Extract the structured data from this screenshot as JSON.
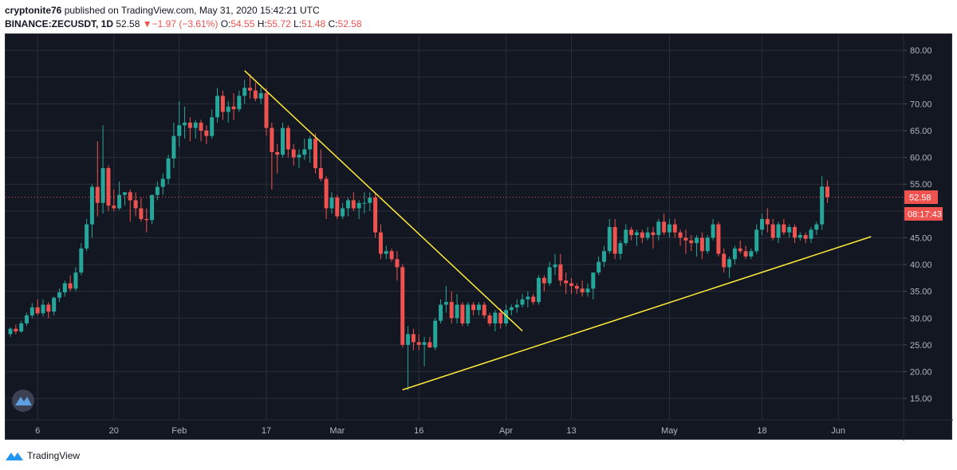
{
  "header": {
    "author": "cryptonite76",
    "published_text": "published on TradingView.com, May 31, 2020 15:42:21 UTC",
    "symbol": "BINANCE:ZECUSDT, 1D",
    "last": "52.58",
    "change_arrow": "▼",
    "change": "−1.97 (−3.61%)",
    "o_label": "O:",
    "o_value": "54.55",
    "h_label": "H:",
    "h_value": "55.72",
    "l_label": "L:",
    "l_value": "51.48",
    "c_label": "C:",
    "c_value": "52.58"
  },
  "price_axis": {
    "ticks": [
      "80.00",
      "75.00",
      "70.00",
      "65.00",
      "60.00",
      "55.00",
      "50.00",
      "45.00",
      "40.00",
      "35.00",
      "30.00",
      "25.00",
      "20.00",
      "15.00"
    ],
    "last_price_label": "52.58",
    "countdown_label": "08:17:43"
  },
  "time_axis": {
    "ticks": [
      {
        "label": "6",
        "index": 5
      },
      {
        "label": "20",
        "index": 19
      },
      {
        "label": "Feb",
        "index": 31
      },
      {
        "label": "17",
        "index": 47
      },
      {
        "label": "Mar",
        "index": 60
      },
      {
        "label": "16",
        "index": 75
      },
      {
        "label": "Apr",
        "index": 91
      },
      {
        "label": "13",
        "index": 103
      },
      {
        "label": "May",
        "index": 121
      },
      {
        "label": "18",
        "index": 138
      },
      {
        "label": "Jun",
        "index": 152
      }
    ]
  },
  "footer": {
    "brand": "TradingView"
  },
  "colors": {
    "up": "#26a69a",
    "down": "#ef5350",
    "background": "#131722",
    "grid": "#2a2e39",
    "axis_text": "#b2b5be",
    "trendline": "#ffeb3b"
  },
  "chart_data": {
    "type": "candlestick",
    "title": "BINANCE:ZECUSDT, 1D",
    "ylim": [
      11,
      83
    ],
    "grid": true,
    "series": [
      {
        "ohlc": [
          [
            27.0,
            28.3,
            26.5,
            28.0
          ],
          [
            28.0,
            28.8,
            27.0,
            27.5
          ],
          [
            27.5,
            29.5,
            27.2,
            29.0
          ],
          [
            29.0,
            31.0,
            28.5,
            30.5
          ],
          [
            30.5,
            32.8,
            30.0,
            32.0
          ],
          [
            32.0,
            33.5,
            30.5,
            30.9
          ],
          [
            30.9,
            33.5,
            30.3,
            32.5
          ],
          [
            32.5,
            33.0,
            30.0,
            31.2
          ],
          [
            31.2,
            34.0,
            30.5,
            33.8
          ],
          [
            33.8,
            35.5,
            33.0,
            34.8
          ],
          [
            34.8,
            37.0,
            34.0,
            36.5
          ],
          [
            36.5,
            38.0,
            35.0,
            35.5
          ],
          [
            35.5,
            39.5,
            35.0,
            38.5
          ],
          [
            38.5,
            44.0,
            38.0,
            43.0
          ],
          [
            43.0,
            48.5,
            42.5,
            47.5
          ],
          [
            47.5,
            55.0,
            45.0,
            54.5
          ],
          [
            54.5,
            63.0,
            49.0,
            51.5
          ],
          [
            51.5,
            66.0,
            49.5,
            58.0
          ],
          [
            58.0,
            58.5,
            50.0,
            51.0
          ],
          [
            51.0,
            54.0,
            50.0,
            50.5
          ],
          [
            50.5,
            55.5,
            50.2,
            53.0
          ],
          [
            53.0,
            53.5,
            51.0,
            53.5
          ],
          [
            53.5,
            54.0,
            48.0,
            52.0
          ],
          [
            52.0,
            53.5,
            49.0,
            50.5
          ],
          [
            50.5,
            52.5,
            48.0,
            48.5
          ],
          [
            48.5,
            50.5,
            46.0,
            48.3
          ],
          [
            48.3,
            53.0,
            47.5,
            53.0
          ],
          [
            53.0,
            55.5,
            52.0,
            54.5
          ],
          [
            54.5,
            57.0,
            53.0,
            56.0
          ],
          [
            56.0,
            60.5,
            55.0,
            59.8
          ],
          [
            59.8,
            66.5,
            58.0,
            64.0
          ],
          [
            64.0,
            70.5,
            62.0,
            66.0
          ],
          [
            66.0,
            69.5,
            63.5,
            66.5
          ],
          [
            66.5,
            67.5,
            63.0,
            65.5
          ],
          [
            65.5,
            67.0,
            63.5,
            66.5
          ],
          [
            66.5,
            67.0,
            63.0,
            65.0
          ],
          [
            65.0,
            66.0,
            62.5,
            64.0
          ],
          [
            64.0,
            69.0,
            63.5,
            67.5
          ],
          [
            67.5,
            73.0,
            66.5,
            71.5
          ],
          [
            71.5,
            72.5,
            67.0,
            68.5
          ],
          [
            68.5,
            70.5,
            66.5,
            69.5
          ],
          [
            69.5,
            72.0,
            67.0,
            69.0
          ],
          [
            69.0,
            72.5,
            68.5,
            71.5
          ],
          [
            71.5,
            74.5,
            70.0,
            73.0
          ],
          [
            73.0,
            75.5,
            71.0,
            72.5
          ],
          [
            72.5,
            74.0,
            70.5,
            71.0
          ],
          [
            71.0,
            73.0,
            70.0,
            72.0
          ],
          [
            72.0,
            73.0,
            64.0,
            65.5
          ],
          [
            65.5,
            66.5,
            54.0,
            61.0
          ],
          [
            61.0,
            62.5,
            57.0,
            60.5
          ],
          [
            60.5,
            66.5,
            60.0,
            65.5
          ],
          [
            65.5,
            66.0,
            60.0,
            61.5
          ],
          [
            61.5,
            62.5,
            58.5,
            60.0
          ],
          [
            60.0,
            61.5,
            58.0,
            60.5
          ],
          [
            60.5,
            63.5,
            59.5,
            61.5
          ],
          [
            61.5,
            64.0,
            59.0,
            63.5
          ],
          [
            63.5,
            64.5,
            57.0,
            58.0
          ],
          [
            58.0,
            61.5,
            55.5,
            56.0
          ],
          [
            56.0,
            56.5,
            48.5,
            50.5
          ],
          [
            50.5,
            53.5,
            49.5,
            52.5
          ],
          [
            52.5,
            53.0,
            48.5,
            49.0
          ],
          [
            49.0,
            51.5,
            48.5,
            50.5
          ],
          [
            50.5,
            52.5,
            49.0,
            52.0
          ],
          [
            52.0,
            53.5,
            50.0,
            50.5
          ],
          [
            50.5,
            52.0,
            48.5,
            51.5
          ],
          [
            51.5,
            53.5,
            49.5,
            51.5
          ],
          [
            51.5,
            53.5,
            50.0,
            52.5
          ],
          [
            52.5,
            53.5,
            45.0,
            46.0
          ],
          [
            46.0,
            47.5,
            41.0,
            42.0
          ],
          [
            42.0,
            43.5,
            41.0,
            42.5
          ],
          [
            42.5,
            43.0,
            40.5,
            41.0
          ],
          [
            41.0,
            42.5,
            37.0,
            39.5
          ],
          [
            39.5,
            40.0,
            24.5,
            25.0
          ],
          [
            25.0,
            28.5,
            16.5,
            27.0
          ],
          [
            27.0,
            28.0,
            24.0,
            25.5
          ],
          [
            25.5,
            27.0,
            24.0,
            25.0
          ],
          [
            25.0,
            26.5,
            21.0,
            25.5
          ],
          [
            25.5,
            26.5,
            24.5,
            24.5
          ],
          [
            24.5,
            30.0,
            24.0,
            29.5
          ],
          [
            29.5,
            33.5,
            29.0,
            32.5
          ],
          [
            32.5,
            36.0,
            31.0,
            33.0
          ],
          [
            33.0,
            35.0,
            29.0,
            30.0
          ],
          [
            30.0,
            34.5,
            29.0,
            32.5
          ],
          [
            32.5,
            33.0,
            28.5,
            29.0
          ],
          [
            29.0,
            33.0,
            28.5,
            32.5
          ],
          [
            32.5,
            33.0,
            30.5,
            31.5
          ],
          [
            31.5,
            33.0,
            30.5,
            32.5
          ],
          [
            32.5,
            33.0,
            30.0,
            30.5
          ],
          [
            30.5,
            31.0,
            28.5,
            29.0
          ],
          [
            29.0,
            31.5,
            27.5,
            31.0
          ],
          [
            31.0,
            31.8,
            28.0,
            29.0
          ],
          [
            29.0,
            32.5,
            28.5,
            31.5
          ],
          [
            31.5,
            32.5,
            30.5,
            32.0
          ],
          [
            32.0,
            33.5,
            31.0,
            32.5
          ],
          [
            32.5,
            34.5,
            32.0,
            33.5
          ],
          [
            33.5,
            35.0,
            32.0,
            34.0
          ],
          [
            34.0,
            34.5,
            32.5,
            33.0
          ],
          [
            33.0,
            38.0,
            32.5,
            37.5
          ],
          [
            37.5,
            38.0,
            35.0,
            36.5
          ],
          [
            36.5,
            40.5,
            36.0,
            39.5
          ],
          [
            39.5,
            42.0,
            38.0,
            40.0
          ],
          [
            40.0,
            42.0,
            36.0,
            37.0
          ],
          [
            37.0,
            38.5,
            34.5,
            36.5
          ],
          [
            36.5,
            37.5,
            34.5,
            36.0
          ],
          [
            36.0,
            36.5,
            34.5,
            35.5
          ],
          [
            35.5,
            37.0,
            34.0,
            34.8
          ],
          [
            34.8,
            36.5,
            34.0,
            35.5
          ],
          [
            35.5,
            38.5,
            33.5,
            38.5
          ],
          [
            38.5,
            41.5,
            38.0,
            40.5
          ],
          [
            40.5,
            43.5,
            39.5,
            42.5
          ],
          [
            42.5,
            48.5,
            42.0,
            47.0
          ],
          [
            47.0,
            48.5,
            41.0,
            42.0
          ],
          [
            42.0,
            44.5,
            41.0,
            44.0
          ],
          [
            44.0,
            47.5,
            43.5,
            46.5
          ],
          [
            46.5,
            47.0,
            44.5,
            45.5
          ],
          [
            45.5,
            46.5,
            43.5,
            46.0
          ],
          [
            46.0,
            46.5,
            44.0,
            45.0
          ],
          [
            45.0,
            47.0,
            44.5,
            46.0
          ],
          [
            46.0,
            47.0,
            43.0,
            45.5
          ],
          [
            45.5,
            48.5,
            44.5,
            48.0
          ],
          [
            48.0,
            49.5,
            45.5,
            46.0
          ],
          [
            46.0,
            48.5,
            45.0,
            47.5
          ],
          [
            47.5,
            48.5,
            45.0,
            46.0
          ],
          [
            46.0,
            46.5,
            43.5,
            45.0
          ],
          [
            45.0,
            46.5,
            42.0,
            44.5
          ],
          [
            44.5,
            45.5,
            42.5,
            44.0
          ],
          [
            44.0,
            45.5,
            41.5,
            45.0
          ],
          [
            45.0,
            46.0,
            41.0,
            42.5
          ],
          [
            42.5,
            45.5,
            42.0,
            45.0
          ],
          [
            45.0,
            48.5,
            44.5,
            47.5
          ],
          [
            47.5,
            48.0,
            41.5,
            42.0
          ],
          [
            42.0,
            43.0,
            38.5,
            39.5
          ],
          [
            39.5,
            41.5,
            37.5,
            41.0
          ],
          [
            41.0,
            43.5,
            40.0,
            43.0
          ],
          [
            43.0,
            44.5,
            42.0,
            42.5
          ],
          [
            42.5,
            43.5,
            41.0,
            41.5
          ],
          [
            41.5,
            43.0,
            41.0,
            42.5
          ],
          [
            42.5,
            47.5,
            42.0,
            46.5
          ],
          [
            46.5,
            49.5,
            45.5,
            48.5
          ],
          [
            48.5,
            50.5,
            46.0,
            47.5
          ],
          [
            47.5,
            48.5,
            44.5,
            45.0
          ],
          [
            45.0,
            48.0,
            44.0,
            47.5
          ],
          [
            47.5,
            48.5,
            45.5,
            46.0
          ],
          [
            46.0,
            47.5,
            45.0,
            47.0
          ],
          [
            47.0,
            47.5,
            44.0,
            45.0
          ],
          [
            45.0,
            46.0,
            44.5,
            45.5
          ],
          [
            45.5,
            46.0,
            44.0,
            44.8
          ],
          [
            44.8,
            47.0,
            44.0,
            46.5
          ],
          [
            46.5,
            48.0,
            45.5,
            47.5
          ],
          [
            47.5,
            56.5,
            46.5,
            54.55
          ],
          [
            54.55,
            55.72,
            51.48,
            52.58
          ]
        ]
      }
    ],
    "trendlines": [
      {
        "from": {
          "index": 43,
          "price": 76.2
        },
        "to": {
          "index": 94,
          "price": 27.6
        }
      },
      {
        "from": {
          "index": 72,
          "price": 16.6
        },
        "to": {
          "index": 158,
          "price": 45.2
        }
      }
    ],
    "last_price": 52.58
  }
}
